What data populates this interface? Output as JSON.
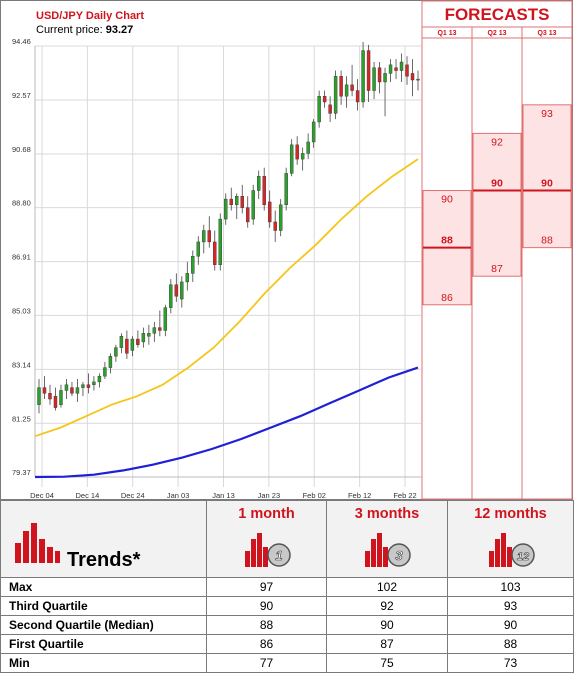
{
  "chart_data": [
    {
      "type": "candlestick",
      "title": "USD/JPY Daily Chart",
      "current_price_label": "Current price:",
      "current_price": "93.27",
      "y_ticks": [
        "94.46",
        "92.57",
        "90.68",
        "88.80",
        "86.91",
        "85.03",
        "83.14",
        "81.25",
        "79.37"
      ],
      "ylim": [
        79.37,
        94.46
      ],
      "x_ticks": [
        "Dec 04",
        "Dec 14",
        "Dec 24",
        "Jan 03",
        "Jan 13",
        "Jan 23",
        "Feb 02",
        "Feb 12",
        "Feb 22"
      ],
      "grid": true,
      "candles": [
        {
          "o": 81.9,
          "h": 82.8,
          "l": 81.6,
          "c": 82.5
        },
        {
          "o": 82.5,
          "h": 82.9,
          "l": 82.1,
          "c": 82.3
        },
        {
          "o": 82.3,
          "h": 82.6,
          "l": 81.9,
          "c": 82.1
        },
        {
          "o": 82.2,
          "h": 82.5,
          "l": 81.7,
          "c": 81.8
        },
        {
          "o": 81.9,
          "h": 82.6,
          "l": 81.8,
          "c": 82.4
        },
        {
          "o": 82.4,
          "h": 82.8,
          "l": 82.1,
          "c": 82.6
        },
        {
          "o": 82.5,
          "h": 82.7,
          "l": 82.2,
          "c": 82.3
        },
        {
          "o": 82.3,
          "h": 82.8,
          "l": 82.0,
          "c": 82.5
        },
        {
          "o": 82.5,
          "h": 82.7,
          "l": 82.2,
          "c": 82.6
        },
        {
          "o": 82.6,
          "h": 83.0,
          "l": 82.3,
          "c": 82.5
        },
        {
          "o": 82.6,
          "h": 82.9,
          "l": 82.4,
          "c": 82.7
        },
        {
          "o": 82.7,
          "h": 83.0,
          "l": 82.5,
          "c": 82.9
        },
        {
          "o": 82.9,
          "h": 83.4,
          "l": 82.8,
          "c": 83.2
        },
        {
          "o": 83.2,
          "h": 83.7,
          "l": 83.0,
          "c": 83.6
        },
        {
          "o": 83.6,
          "h": 84.0,
          "l": 83.4,
          "c": 83.9
        },
        {
          "o": 83.9,
          "h": 84.4,
          "l": 83.7,
          "c": 84.3
        },
        {
          "o": 84.2,
          "h": 84.5,
          "l": 83.5,
          "c": 83.7
        },
        {
          "o": 83.8,
          "h": 84.3,
          "l": 83.6,
          "c": 84.2
        },
        {
          "o": 84.2,
          "h": 84.5,
          "l": 83.9,
          "c": 84.0
        },
        {
          "o": 84.1,
          "h": 84.6,
          "l": 83.9,
          "c": 84.4
        },
        {
          "o": 84.3,
          "h": 84.7,
          "l": 84.0,
          "c": 84.4
        },
        {
          "o": 84.4,
          "h": 84.8,
          "l": 84.1,
          "c": 84.6
        },
        {
          "o": 84.6,
          "h": 85.2,
          "l": 84.3,
          "c": 84.5
        },
        {
          "o": 84.5,
          "h": 85.4,
          "l": 84.3,
          "c": 85.3
        },
        {
          "o": 85.3,
          "h": 86.3,
          "l": 85.1,
          "c": 86.1
        },
        {
          "o": 86.1,
          "h": 86.5,
          "l": 85.5,
          "c": 85.7
        },
        {
          "o": 85.6,
          "h": 86.4,
          "l": 85.3,
          "c": 86.2
        },
        {
          "o": 86.2,
          "h": 86.9,
          "l": 85.9,
          "c": 86.5
        },
        {
          "o": 86.5,
          "h": 87.3,
          "l": 86.2,
          "c": 87.1
        },
        {
          "o": 87.1,
          "h": 87.8,
          "l": 86.8,
          "c": 87.6
        },
        {
          "o": 87.6,
          "h": 88.2,
          "l": 87.2,
          "c": 88.0
        },
        {
          "o": 88.0,
          "h": 88.5,
          "l": 87.4,
          "c": 87.6
        },
        {
          "o": 87.6,
          "h": 88.0,
          "l": 86.6,
          "c": 86.8
        },
        {
          "o": 86.8,
          "h": 88.6,
          "l": 86.6,
          "c": 88.4
        },
        {
          "o": 88.4,
          "h": 89.3,
          "l": 88.2,
          "c": 89.1
        },
        {
          "o": 89.1,
          "h": 89.5,
          "l": 88.7,
          "c": 88.9
        },
        {
          "o": 88.9,
          "h": 89.3,
          "l": 88.4,
          "c": 89.2
        },
        {
          "o": 89.2,
          "h": 89.6,
          "l": 88.6,
          "c": 88.8
        },
        {
          "o": 88.8,
          "h": 89.2,
          "l": 88.1,
          "c": 88.3
        },
        {
          "o": 88.4,
          "h": 89.6,
          "l": 88.2,
          "c": 89.4
        },
        {
          "o": 89.4,
          "h": 90.1,
          "l": 89.1,
          "c": 89.9
        },
        {
          "o": 89.9,
          "h": 90.2,
          "l": 88.7,
          "c": 88.9
        },
        {
          "o": 89.0,
          "h": 89.4,
          "l": 88.1,
          "c": 88.3
        },
        {
          "o": 88.3,
          "h": 88.7,
          "l": 87.6,
          "c": 88.0
        },
        {
          "o": 88.0,
          "h": 89.1,
          "l": 87.8,
          "c": 88.9
        },
        {
          "o": 88.9,
          "h": 90.2,
          "l": 88.7,
          "c": 90.0
        },
        {
          "o": 90.0,
          "h": 91.2,
          "l": 89.9,
          "c": 91.0
        },
        {
          "o": 91.0,
          "h": 91.3,
          "l": 90.3,
          "c": 90.5
        },
        {
          "o": 90.5,
          "h": 90.9,
          "l": 90.1,
          "c": 90.7
        },
        {
          "o": 90.7,
          "h": 91.4,
          "l": 90.5,
          "c": 91.1
        },
        {
          "o": 91.1,
          "h": 91.9,
          "l": 90.9,
          "c": 91.8
        },
        {
          "o": 91.8,
          "h": 92.9,
          "l": 91.6,
          "c": 92.7
        },
        {
          "o": 92.7,
          "h": 92.9,
          "l": 92.3,
          "c": 92.5
        },
        {
          "o": 92.4,
          "h": 92.7,
          "l": 91.8,
          "c": 92.1
        },
        {
          "o": 92.1,
          "h": 93.6,
          "l": 91.9,
          "c": 93.4
        },
        {
          "o": 93.4,
          "h": 93.6,
          "l": 92.4,
          "c": 92.7
        },
        {
          "o": 92.7,
          "h": 93.4,
          "l": 92.3,
          "c": 93.1
        },
        {
          "o": 93.1,
          "h": 93.8,
          "l": 92.7,
          "c": 92.9
        },
        {
          "o": 92.9,
          "h": 93.3,
          "l": 92.2,
          "c": 92.5
        },
        {
          "o": 92.5,
          "h": 94.6,
          "l": 92.3,
          "c": 94.3
        },
        {
          "o": 94.3,
          "h": 94.5,
          "l": 92.5,
          "c": 92.9
        },
        {
          "o": 92.9,
          "h": 93.9,
          "l": 92.6,
          "c": 93.7
        },
        {
          "o": 93.7,
          "h": 93.9,
          "l": 92.8,
          "c": 93.2
        },
        {
          "o": 93.2,
          "h": 93.7,
          "l": 92.0,
          "c": 93.5
        },
        {
          "o": 93.5,
          "h": 94.0,
          "l": 93.2,
          "c": 93.8
        },
        {
          "o": 93.7,
          "h": 94.0,
          "l": 93.3,
          "c": 93.6
        },
        {
          "o": 93.6,
          "h": 94.2,
          "l": 93.2,
          "c": 93.9
        },
        {
          "o": 93.8,
          "h": 94.1,
          "l": 93.1,
          "c": 93.4
        },
        {
          "o": 93.5,
          "h": 94.0,
          "l": 92.7,
          "c": 93.27
        },
        {
          "o": 93.27,
          "h": 93.6,
          "l": 92.9,
          "c": 93.3
        }
      ],
      "ma_short": [
        80.8,
        81.1,
        81.5,
        81.9,
        82.2,
        82.6,
        83.2,
        83.9,
        84.8,
        85.8,
        86.7,
        87.5,
        88.4,
        89.2,
        89.9,
        90.5
      ],
      "ma_long": [
        79.37,
        79.38,
        79.45,
        79.6,
        79.8,
        80.05,
        80.35,
        80.7,
        81.1,
        81.5,
        81.95,
        82.4,
        82.85,
        83.2
      ],
      "colors": {
        "up": "#2ca02c",
        "down": "#d62728",
        "ma_short": "#f5c518",
        "ma_long": "#1f1fd6",
        "grid": "#d9d9d9"
      }
    },
    {
      "type": "forecast-quartiles",
      "title": "FORECASTS",
      "periods": [
        {
          "label": "Q1 13",
          "q3": "90",
          "median": "88",
          "q1": "86"
        },
        {
          "label": "Q2 13",
          "q3": "92",
          "median": "90",
          "q1": "87"
        },
        {
          "label": "Q3 13",
          "q3": "93",
          "median": "90",
          "q1": "88"
        }
      ]
    },
    {
      "type": "table",
      "title": "Trends*",
      "columns": [
        {
          "label": "1 month",
          "badge": "1"
        },
        {
          "label": "3 months",
          "badge": "3"
        },
        {
          "label": "12 months",
          "badge": "12"
        }
      ],
      "rows": [
        {
          "label": "Max",
          "values": [
            "97",
            "102",
            "103"
          ]
        },
        {
          "label": "Third Quartile",
          "values": [
            "90",
            "92",
            "93"
          ]
        },
        {
          "label": "Second Quartile (Median)",
          "values": [
            "88",
            "90",
            "90"
          ]
        },
        {
          "label": "First Quartile",
          "values": [
            "86",
            "87",
            "88"
          ]
        },
        {
          "label": "Min",
          "values": [
            "77",
            "75",
            "73"
          ]
        }
      ]
    }
  ]
}
